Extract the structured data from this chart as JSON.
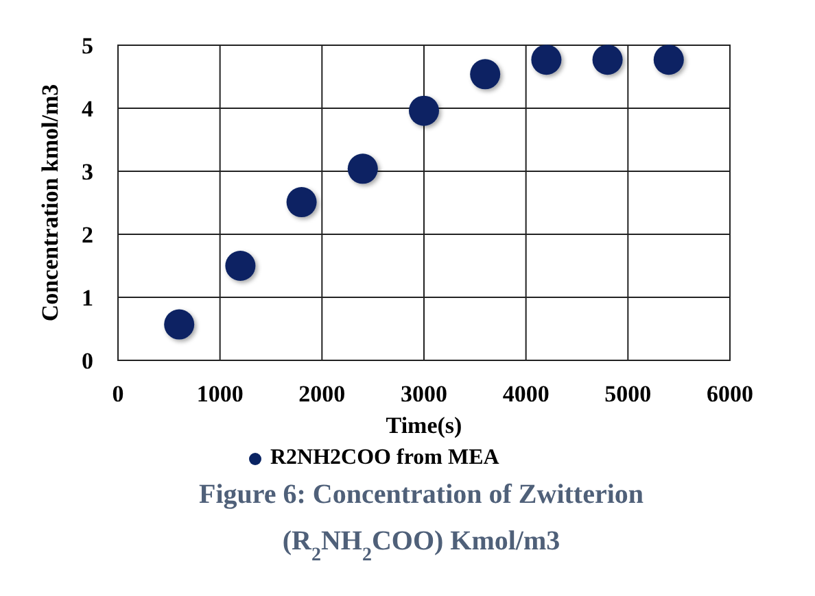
{
  "chart_data": {
    "type": "scatter",
    "xlabel": "Time(s)",
    "ylabel": "Concentration kmol/m3",
    "x": [
      600,
      1200,
      1800,
      2400,
      3000,
      3600,
      4200,
      4800,
      5400
    ],
    "series": [
      {
        "name": "R2NH2COO from MEA",
        "color": "#0a2463",
        "values": [
          0.57,
          1.5,
          2.51,
          3.04,
          3.96,
          4.54,
          4.77,
          4.77,
          4.77
        ]
      }
    ],
    "xlim": [
      0,
      6000
    ],
    "xticks": [
      0,
      1000,
      2000,
      3000,
      4000,
      5000,
      6000
    ],
    "ylim": [
      0,
      5
    ],
    "yticks": [
      0,
      1,
      2,
      3,
      4,
      5
    ],
    "grid": true,
    "legend": "bottom",
    "marker": "circle",
    "annotations": [
      "Figure 6: Concentration of Zwitterion (R$_{2}$NH$_{2}$COO) Kmol/m3"
    ]
  }
}
